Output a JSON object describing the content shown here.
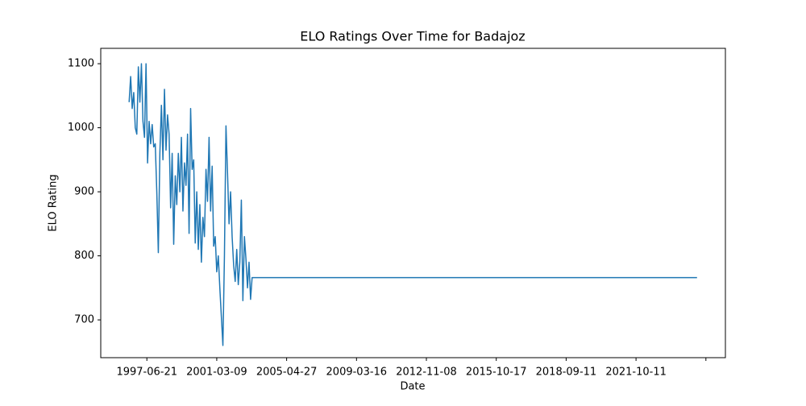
{
  "chart_data": {
    "type": "line",
    "title": "ELO Ratings Over Time for Badajoz",
    "x_label": "Date",
    "y_label": "ELO Rating",
    "x": [
      0,
      22,
      44,
      66,
      88,
      110,
      132,
      154,
      176,
      198,
      220,
      242,
      264,
      286,
      308,
      330,
      352,
      374,
      396,
      418,
      440,
      462,
      484,
      506,
      528,
      550,
      572,
      594,
      616,
      638,
      660,
      682,
      704,
      726,
      748,
      770,
      792,
      814,
      836,
      858,
      880,
      902,
      924,
      946,
      968,
      990,
      1012,
      1034,
      1056,
      1078,
      1100,
      1122,
      1144,
      1166,
      1188,
      1210,
      1232,
      1254,
      1276,
      1298,
      1320,
      1342,
      1364,
      1386,
      1408,
      1430,
      1452,
      1474,
      1496,
      1518,
      1540,
      1562,
      1584,
      1606,
      1628,
      1650,
      1672,
      1694,
      1716,
      1738,
      1760,
      8127
    ],
    "series": [
      {
        "name": "ELO",
        "color": "#1f77b4",
        "values": [
          1040,
          1080,
          1030,
          1055,
          1000,
          990,
          1095,
          1040,
          1100,
          1010,
          985,
          1100,
          945,
          1010,
          975,
          1005,
          970,
          975,
          900,
          805,
          960,
          1035,
          950,
          1060,
          965,
          1020,
          990,
          875,
          960,
          818,
          925,
          880,
          960,
          900,
          985,
          870,
          945,
          910,
          990,
          835,
          1030,
          935,
          950,
          820,
          900,
          810,
          880,
          790,
          860,
          830,
          935,
          885,
          985,
          870,
          940,
          815,
          830,
          775,
          800,
          750,
          705,
          660,
          800,
          1003,
          930,
          850,
          900,
          830,
          785,
          760,
          810,
          755,
          790,
          887,
          730,
          830,
          795,
          750,
          790,
          732,
          766,
          766
        ]
      }
    ],
    "xlim": [
      -406,
      8533
    ],
    "xticks": [
      {
        "value": 254,
        "label": "1997-06-21"
      },
      {
        "value": 1254,
        "label": "2001-03-09"
      },
      {
        "value": 2254,
        "label": "2005-04-27"
      },
      {
        "value": 3254,
        "label": "2009-03-16"
      },
      {
        "value": 4254,
        "label": "2012-11-08"
      },
      {
        "value": 5254,
        "label": "2015-10-17"
      },
      {
        "value": 6254,
        "label": "2018-09-11"
      },
      {
        "value": 7254,
        "label": "2021-10-11"
      },
      {
        "value": 8254,
        "label": null
      }
    ],
    "ylim": [
      641,
      1124
    ],
    "yticks": [
      700,
      800,
      900,
      1000,
      1100
    ]
  }
}
